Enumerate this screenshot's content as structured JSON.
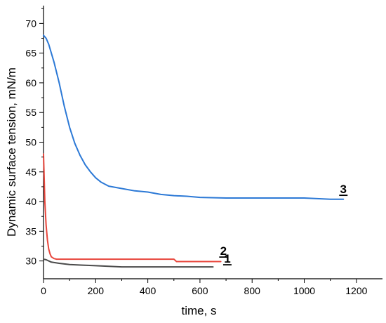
{
  "chart_data": {
    "type": "line",
    "xlabel": "time, s",
    "ylabel": "Dynamic surface tension, mN/m",
    "xlim": [
      0,
      1300
    ],
    "ylim": [
      27,
      73
    ],
    "x_ticks": [
      0,
      200,
      400,
      600,
      800,
      1000,
      1200
    ],
    "y_ticks": [
      30,
      35,
      40,
      45,
      50,
      55,
      60,
      65,
      70
    ],
    "grid": false,
    "series": [
      {
        "name": "1",
        "color": "#4a4a4a",
        "x": [
          0,
          10,
          30,
          60,
          100,
          150,
          200,
          250,
          300,
          350,
          400,
          450,
          500,
          550,
          600,
          650
        ],
        "y": [
          30.3,
          30.2,
          29.8,
          29.6,
          29.4,
          29.3,
          29.2,
          29.1,
          29.0,
          29.0,
          29.0,
          29.0,
          29.0,
          29.0,
          29.0,
          29.0
        ]
      },
      {
        "name": "2",
        "color": "#e8463c",
        "x": [
          0,
          5,
          10,
          15,
          20,
          25,
          30,
          40,
          50,
          60,
          100,
          200,
          300,
          400,
          500,
          510,
          550,
          600,
          650,
          680
        ],
        "y": [
          48.0,
          40.0,
          36.0,
          33.5,
          32.0,
          31.2,
          30.7,
          30.4,
          30.3,
          30.3,
          30.3,
          30.3,
          30.3,
          30.3,
          30.3,
          29.9,
          29.9,
          29.9,
          29.9,
          29.9
        ]
      },
      {
        "name": "3",
        "color": "#2c79d6",
        "x": [
          0,
          10,
          20,
          40,
          60,
          80,
          100,
          120,
          140,
          160,
          180,
          200,
          220,
          250,
          300,
          350,
          400,
          450,
          500,
          550,
          600,
          700,
          800,
          900,
          1000,
          1100,
          1150
        ],
        "y": [
          68.0,
          67.5,
          66.5,
          63.5,
          60.0,
          56.0,
          52.5,
          49.8,
          47.8,
          46.2,
          45.0,
          44.0,
          43.3,
          42.6,
          42.2,
          41.8,
          41.6,
          41.2,
          41.0,
          40.9,
          40.7,
          40.6,
          40.6,
          40.6,
          40.6,
          40.4,
          40.4
        ]
      }
    ],
    "labels": [
      {
        "text": "1",
        "x": 705,
        "y": 29.0
      },
      {
        "text": "2",
        "x": 690,
        "y": 30.3
      },
      {
        "text": "3",
        "x": 1150,
        "y": 40.7
      }
    ]
  }
}
